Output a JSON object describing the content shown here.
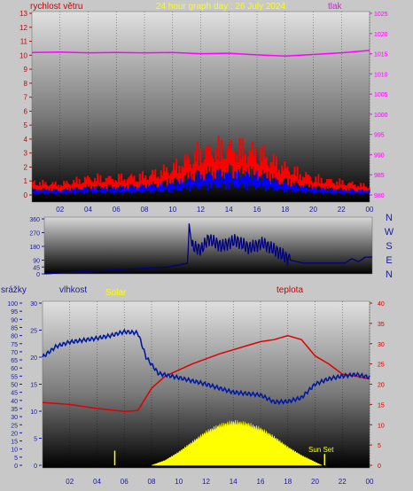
{
  "header": {
    "title": "24 hour graph day : 26 July 2024",
    "wind_label": "rychlost větru",
    "pressure_label": "tlak"
  },
  "compass": [
    "N",
    "W",
    "S",
    "E",
    "N"
  ],
  "lower_labels": {
    "rain": "srážky",
    "humidity": "vlhkost",
    "solar": "Solar",
    "temperature": "teplota",
    "sunset": "Sun Set"
  },
  "colors": {
    "wind": "#ff0000",
    "gust": "#0000ff",
    "pressure": "#ff00ff",
    "direction": "#000080",
    "humidity": "#001aa0",
    "temperature": "#e00000",
    "solar": "#ffff00"
  },
  "chart_data": [
    {
      "type": "line",
      "name": "wind-pressure",
      "x_ticks": [
        "02",
        "04",
        "06",
        "08",
        "10",
        "12",
        "14",
        "16",
        "18",
        "20",
        "22",
        "00"
      ],
      "left_axis": {
        "label": "rychlost větru",
        "ticks": [
          0,
          1,
          2,
          3,
          4,
          5,
          6,
          7,
          8,
          9,
          10,
          11,
          12,
          13
        ],
        "range": [
          0,
          13
        ]
      },
      "right_axis": {
        "label": "tlak",
        "ticks": [
          980,
          985,
          990,
          995,
          1000,
          1005,
          1010,
          1015,
          1020,
          1025
        ],
        "range": [
          980,
          1025
        ]
      },
      "series": [
        {
          "name": "tlak",
          "axis": "right",
          "points": [
            [
              0,
              1015.3
            ],
            [
              2,
              1015.4
            ],
            [
              4,
              1015.2
            ],
            [
              6,
              1015.3
            ],
            [
              8,
              1015.2
            ],
            [
              10,
              1015.3
            ],
            [
              12,
              1015.0
            ],
            [
              14,
              1015.1
            ],
            [
              16,
              1014.7
            ],
            [
              18,
              1014.4
            ],
            [
              20,
              1014.8
            ],
            [
              22,
              1015.2
            ],
            [
              24,
              1015.8
            ]
          ]
        },
        {
          "axis": "left",
          "points": [
            [
              0,
              0.6
            ],
            [
              2,
              0.5
            ],
            [
              4,
              0.8
            ],
            [
              6,
              0.8
            ],
            [
              8,
              0.9
            ],
            [
              10,
              1.3
            ],
            [
              12,
              2.1
            ],
            [
              14,
              2.3
            ],
            [
              16,
              2.1
            ],
            [
              18,
              1.3
            ],
            [
              20,
              0.8
            ],
            [
              22,
              0.6
            ],
            [
              24,
              0.4
            ]
          ]
        },
        {
          "axis": "left",
          "points": [
            [
              0,
              0.2
            ],
            [
              2,
              0.2
            ],
            [
              4,
              0.3
            ],
            [
              6,
              0.3
            ],
            [
              8,
              0.4
            ],
            [
              10,
              0.5
            ],
            [
              12,
              0.9
            ],
            [
              14,
              1.0
            ],
            [
              16,
              0.9
            ],
            [
              18,
              0.5
            ],
            [
              20,
              0.3
            ],
            [
              22,
              0.2
            ],
            [
              24,
              0.2
            ]
          ]
        }
      ]
    },
    {
      "type": "line",
      "name": "wind-direction",
      "y_axis": {
        "ticks": [
          0,
          45,
          90,
          180,
          270,
          360
        ],
        "range": [
          0,
          360
        ]
      },
      "points": [
        [
          0,
          0
        ],
        [
          5,
          25
        ],
        [
          9,
          45
        ],
        [
          10.5,
          70
        ],
        [
          10.6,
          330
        ],
        [
          10.8,
          180
        ],
        [
          11.5,
          160
        ],
        [
          12,
          230
        ],
        [
          13,
          180
        ],
        [
          14,
          220
        ],
        [
          15,
          170
        ],
        [
          16,
          200
        ],
        [
          17,
          150
        ],
        [
          18,
          90
        ],
        [
          19,
          70
        ],
        [
          20,
          70
        ],
        [
          21,
          70
        ],
        [
          22,
          70
        ],
        [
          22.5,
          100
        ],
        [
          23,
          80
        ],
        [
          23.5,
          110
        ],
        [
          24,
          110
        ]
      ]
    },
    {
      "type": "line",
      "name": "rain-humidity-solar-temperature",
      "x_ticks": [
        "02",
        "04",
        "06",
        "08",
        "10",
        "12",
        "14",
        "16",
        "18",
        "20",
        "22",
        "00"
      ],
      "rain_axis": {
        "label": "srážky",
        "ticks": [
          0,
          5,
          10,
          15,
          20,
          25,
          30,
          35,
          40,
          45,
          50,
          55,
          60,
          65,
          70,
          75,
          80,
          85,
          90,
          95,
          100
        ],
        "range": [
          0,
          100
        ]
      },
      "humidity_axis": {
        "label": "vlhkost",
        "ticks": [
          0,
          5,
          10,
          15,
          20,
          25,
          30
        ],
        "range": [
          0,
          30
        ]
      },
      "temperature_axis": {
        "label": "teplota",
        "ticks": [
          0,
          5,
          10,
          15,
          20,
          25,
          30,
          35,
          40
        ],
        "range": [
          0,
          40
        ]
      },
      "series": [
        {
          "name": "vlhkost",
          "axis": "humidity",
          "points": [
            [
              0,
              20
            ],
            [
              1,
              22
            ],
            [
              2,
              22.8
            ],
            [
              4,
              23.5
            ],
            [
              5,
              24
            ],
            [
              6,
              24.7
            ],
            [
              7,
              24.5
            ],
            [
              7.6,
              20
            ],
            [
              8.5,
              17
            ],
            [
              10,
              16.2
            ],
            [
              12,
              15
            ],
            [
              14,
              13.5
            ],
            [
              16,
              13
            ],
            [
              17,
              11.7
            ],
            [
              18,
              11.8
            ],
            [
              19,
              12.5
            ],
            [
              20,
              15
            ],
            [
              21,
              16
            ],
            [
              22,
              16.5
            ],
            [
              23,
              16.8
            ],
            [
              24,
              16.3
            ]
          ]
        },
        {
          "name": "teplota",
          "axis": "temperature",
          "points": [
            [
              0,
              15.5
            ],
            [
              2,
              15
            ],
            [
              4,
              14
            ],
            [
              6,
              13.3
            ],
            [
              7,
              13.5
            ],
            [
              8,
              19
            ],
            [
              9,
              22
            ],
            [
              11,
              25
            ],
            [
              13,
              27.5
            ],
            [
              15,
              29.5
            ],
            [
              16,
              30.5
            ],
            [
              17,
              31
            ],
            [
              18,
              32
            ],
            [
              19,
              31
            ],
            [
              20,
              27
            ],
            [
              21,
              25
            ],
            [
              22,
              22.5
            ],
            [
              23,
              22
            ],
            [
              24,
              21.3
            ]
          ]
        },
        {
          "name": "Solar",
          "axis": "rain",
          "points": [
            [
              8,
              0
            ],
            [
              9,
              3
            ],
            [
              10,
              8
            ],
            [
              11,
              14
            ],
            [
              12,
              20
            ],
            [
              13,
              24
            ],
            [
              14,
              26
            ],
            [
              15,
              25
            ],
            [
              16,
              22
            ],
            [
              17,
              17
            ],
            [
              18,
              11
            ],
            [
              19,
              6
            ],
            [
              20,
              2
            ],
            [
              20.5,
              0
            ]
          ]
        }
      ]
    }
  ]
}
